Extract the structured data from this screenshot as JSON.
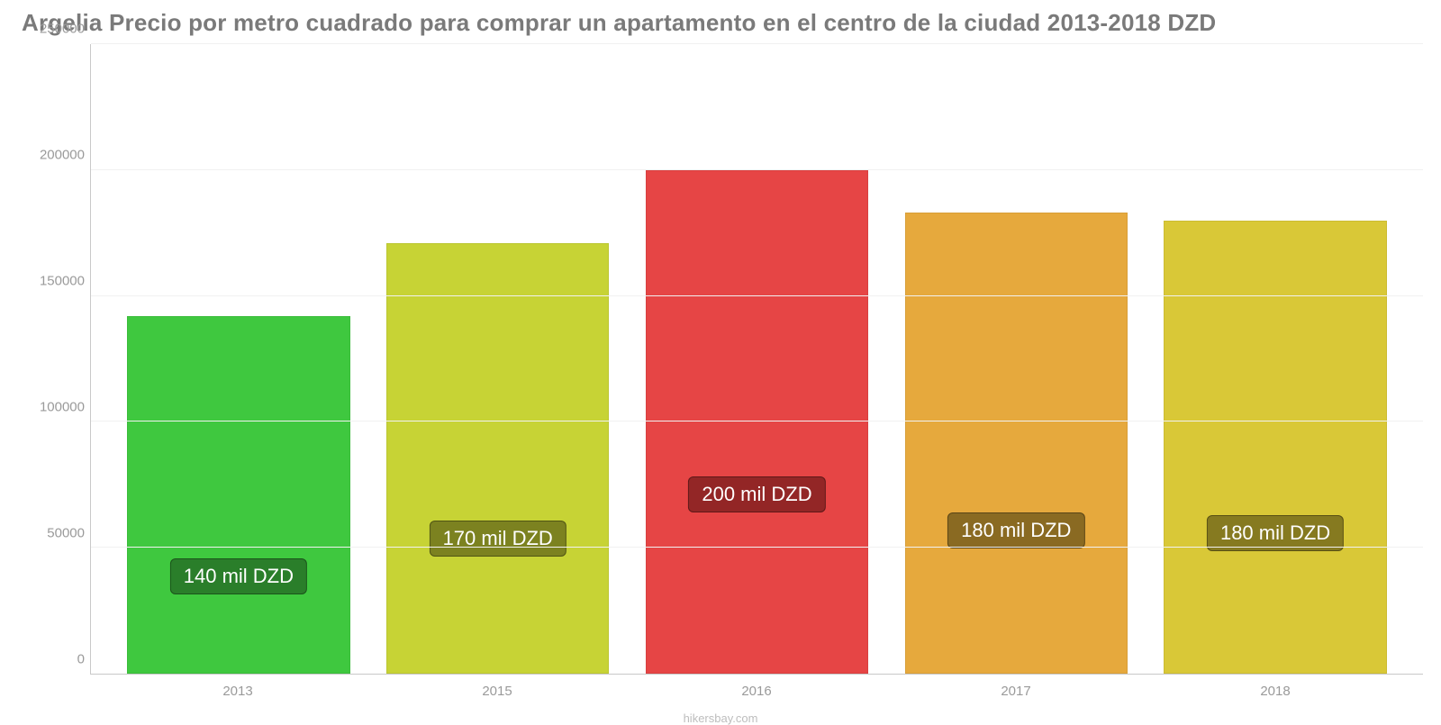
{
  "chart": {
    "type": "bar",
    "title": "Argelia Precio por metro cuadrado para comprar un apartamento en el centro de la ciudad 2013-2018 DZD",
    "title_color": "#7a7a7a",
    "title_fontsize": 26,
    "background_color": "#ffffff",
    "grid_color": "#f1f1f1",
    "axis_color": "#c9c9c9",
    "tick_label_color": "#9a9a9a",
    "tick_fontsize": 15,
    "ylim": [
      0,
      250000
    ],
    "ytick_step": 50000,
    "yticks": [
      {
        "value": 0,
        "label": "0"
      },
      {
        "value": 50000,
        "label": "50000"
      },
      {
        "value": 100000,
        "label": "100000"
      },
      {
        "value": 150000,
        "label": "150000"
      },
      {
        "value": 200000,
        "label": "200000"
      },
      {
        "value": 250000,
        "label": "250000"
      }
    ],
    "bar_width_pct": 86,
    "label_fontsize": 22,
    "categories": [
      "2013",
      "2015",
      "2016",
      "2017",
      "2018"
    ],
    "bars": [
      {
        "year": "2013",
        "value": 142000,
        "label": "140 mil DZD",
        "color": "#3fc83f",
        "label_bg": "#2a7e2a",
        "label_bottom_pct": 22
      },
      {
        "year": "2015",
        "value": 171000,
        "label": "170 mil DZD",
        "color": "#c7d335",
        "label_bg": "#7c8220",
        "label_bottom_pct": 27
      },
      {
        "year": "2016",
        "value": 200000,
        "label": "200 mil DZD",
        "color": "#e64545",
        "label_bg": "#932626",
        "label_bottom_pct": 32
      },
      {
        "year": "2017",
        "value": 183000,
        "label": "180 mil DZD",
        "color": "#e6a93d",
        "label_bg": "#8a6a22",
        "label_bottom_pct": 27
      },
      {
        "year": "2018",
        "value": 180000,
        "label": "180 mil DZD",
        "color": "#d9c837",
        "label_bg": "#867a20",
        "label_bottom_pct": 27
      }
    ],
    "footer": "hikersbay.com",
    "footer_color": "#bdbdbd"
  }
}
